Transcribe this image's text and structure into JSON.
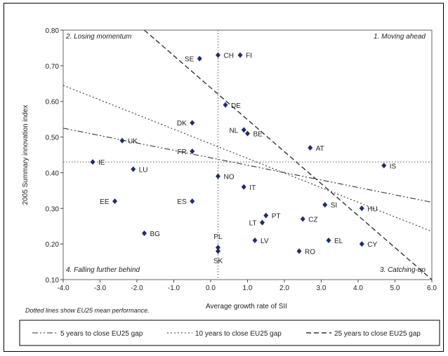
{
  "chart_data": {
    "type": "scatter",
    "xlabel": "Average growth rate of SII",
    "ylabel": "2005 Summary innovation index",
    "xlim": [
      -4.0,
      6.0
    ],
    "ylim": [
      0.1,
      0.8
    ],
    "x_ticks": [
      "-4.0",
      "-3.0",
      "-2.0",
      "-1.0",
      "0.0",
      "1.0",
      "2.0",
      "3.0",
      "4.0",
      "5.0",
      "6.0"
    ],
    "y_ticks": [
      "0.10",
      "0.20",
      "0.30",
      "0.40",
      "0.50",
      "0.60",
      "0.70",
      "0.80"
    ],
    "mean_lines": {
      "x": 0.2,
      "y": 0.43
    },
    "quadrants": {
      "top_left": "2. Losing momentum",
      "top_right": "1. Moving ahead",
      "bottom_left": "4. Falling further behind",
      "bottom_right": "3. Catching-up"
    },
    "note": "Dotted lines show EU25 mean performance.",
    "points": [
      {
        "label": "SE",
        "x": -0.3,
        "y": 0.72
      },
      {
        "label": "CH",
        "x": 0.2,
        "y": 0.73
      },
      {
        "label": "FI",
        "x": 0.8,
        "y": 0.73
      },
      {
        "label": "DE",
        "x": 0.4,
        "y": 0.59
      },
      {
        "label": "DK",
        "x": -0.5,
        "y": 0.54
      },
      {
        "label": "NL",
        "x": 0.9,
        "y": 0.52
      },
      {
        "label": "BE",
        "x": 1.0,
        "y": 0.51
      },
      {
        "label": "UK",
        "x": -2.4,
        "y": 0.49
      },
      {
        "label": "AT",
        "x": 2.7,
        "y": 0.47
      },
      {
        "label": "FR",
        "x": -0.5,
        "y": 0.46
      },
      {
        "label": "IE",
        "x": -3.2,
        "y": 0.43
      },
      {
        "label": "IS",
        "x": 4.7,
        "y": 0.42
      },
      {
        "label": "LU",
        "x": -2.1,
        "y": 0.41
      },
      {
        "label": "NO",
        "x": 0.2,
        "y": 0.39
      },
      {
        "label": "IT",
        "x": 0.9,
        "y": 0.36
      },
      {
        "label": "EE",
        "x": -2.6,
        "y": 0.32
      },
      {
        "label": "ES",
        "x": -0.5,
        "y": 0.32
      },
      {
        "label": "SI",
        "x": 3.1,
        "y": 0.31
      },
      {
        "label": "HU",
        "x": 4.1,
        "y": 0.3
      },
      {
        "label": "PT",
        "x": 1.5,
        "y": 0.28
      },
      {
        "label": "CZ",
        "x": 2.5,
        "y": 0.27
      },
      {
        "label": "LT",
        "x": 1.4,
        "y": 0.26
      },
      {
        "label": "BG",
        "x": -1.8,
        "y": 0.23
      },
      {
        "label": "LV",
        "x": 1.2,
        "y": 0.21
      },
      {
        "label": "EL",
        "x": 3.2,
        "y": 0.21
      },
      {
        "label": "CY",
        "x": 4.1,
        "y": 0.2
      },
      {
        "label": "PL",
        "x": 0.2,
        "y": 0.19
      },
      {
        "label": "RO",
        "x": 2.4,
        "y": 0.18
      },
      {
        "label": "SK",
        "x": 0.2,
        "y": 0.18
      }
    ],
    "series": [
      {
        "name": "5 years to close EU25 gap",
        "x": [
          -4.0,
          6.0
        ],
        "y": [
          0.525,
          0.317
        ]
      },
      {
        "name": "10 years to close EU25 gap",
        "x": [
          -4.0,
          6.0
        ],
        "y": [
          0.645,
          0.235
        ]
      },
      {
        "name": "25 years to close EU25 gap",
        "x": [
          -1.8,
          6.0
        ],
        "y": [
          0.8,
          0.1
        ]
      }
    ],
    "legend_position": "bottom"
  }
}
